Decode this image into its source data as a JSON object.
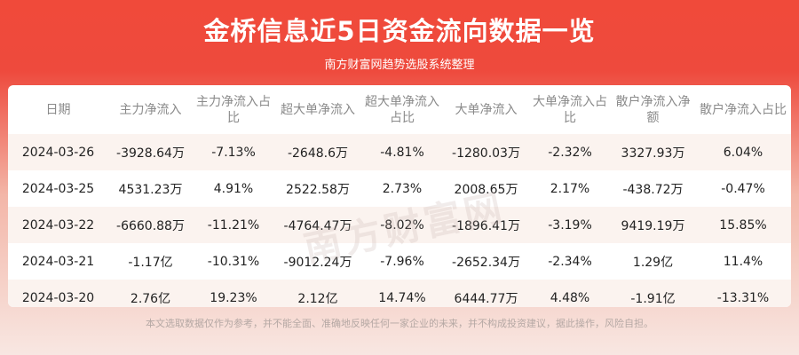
{
  "header": {
    "title": "金桥信息近5日资金流向数据一览",
    "subtitle": "南方财富网趋势选股系统整理"
  },
  "watermark": "南方财富网",
  "table": {
    "columns": [
      "日期",
      "主力净流入",
      "主力净流入占比",
      "超大单净流入",
      "超大单净流入占比",
      "大单净流入",
      "大单净流入占比",
      "散户净流入净额",
      "散户净流入占比"
    ],
    "rows": [
      [
        "2024-03-26",
        "-3928.64万",
        "-7.13%",
        "-2648.6万",
        "-4.81%",
        "-1280.03万",
        "-2.32%",
        "3327.93万",
        "6.04%"
      ],
      [
        "2024-03-25",
        "4531.23万",
        "4.91%",
        "2522.58万",
        "2.73%",
        "2008.65万",
        "2.17%",
        "-438.72万",
        "-0.47%"
      ],
      [
        "2024-03-22",
        "-6660.88万",
        "-11.21%",
        "-4764.47万",
        "-8.02%",
        "-1896.41万",
        "-3.19%",
        "9419.19万",
        "15.85%"
      ],
      [
        "2024-03-21",
        "-1.17亿",
        "-10.31%",
        "-9012.24万",
        "-7.96%",
        "-2652.34万",
        "-2.34%",
        "1.29亿",
        "11.4%"
      ],
      [
        "2024-03-20",
        "2.76亿",
        "19.23%",
        "2.12亿",
        "14.74%",
        "6444.77万",
        "4.48%",
        "-1.91亿",
        "-13.31%"
      ]
    ]
  },
  "footer": "本文选取数据仅作为参考，并不能全面、准确地反映任何一家企业的未来，并不构成投资建议，据此操作，风险自担。",
  "colors": {
    "header_red": "#f04a3a",
    "alt_row": "#fbf3ef",
    "header_text": "#8a8a8a"
  }
}
